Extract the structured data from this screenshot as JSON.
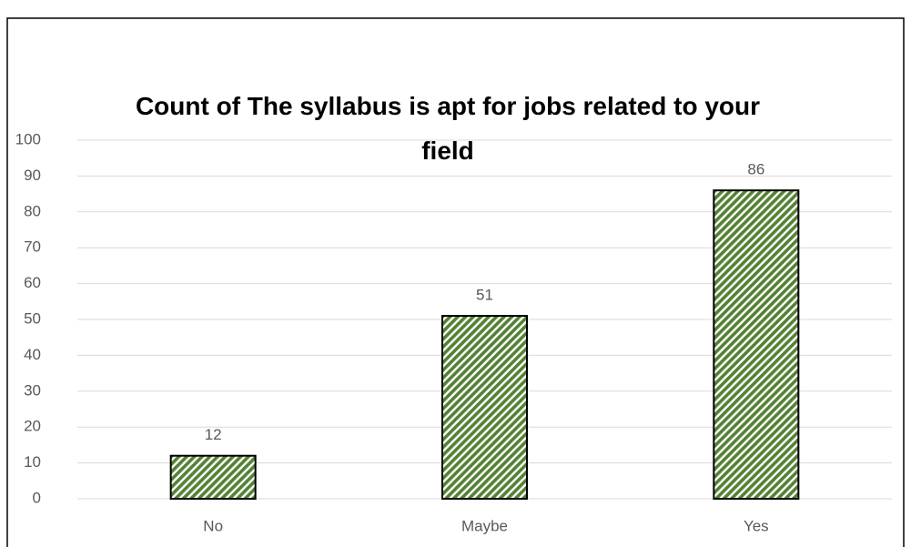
{
  "chart_data": {
    "type": "bar",
    "title": "Count of The syllabus is apt for jobs related to your field",
    "categories": [
      "No",
      "Maybe",
      "Yes"
    ],
    "values": [
      12,
      51,
      86
    ],
    "color": "#548235",
    "ylim": [
      0,
      100
    ],
    "yticks": [
      0,
      10,
      20,
      30,
      40,
      50,
      60,
      70,
      80,
      90,
      100
    ],
    "grid": true,
    "data_labels": true
  }
}
